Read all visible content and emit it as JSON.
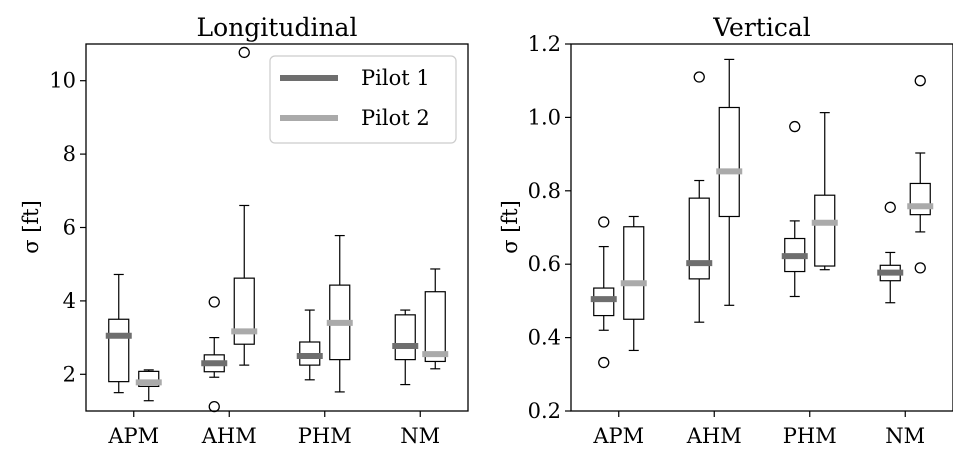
{
  "legend": {
    "items": [
      "Pilot 1",
      "Pilot 2"
    ]
  },
  "colors": {
    "pilot1": "#6e6e6e",
    "pilot2": "#aaaaaa"
  },
  "chart_data": [
    {
      "type": "box",
      "title": "Longitudinal",
      "ylabel": "σ [ft]",
      "ylim": [
        1.0,
        11.0
      ],
      "yticks": [
        2,
        4,
        6,
        8,
        10
      ],
      "ytick_labels": [
        "2",
        "4",
        "6",
        "8",
        "10"
      ],
      "categories": [
        "APM",
        "AHM",
        "PHM",
        "NM"
      ],
      "legend_position": "top-right",
      "series": [
        {
          "name": "Pilot 1",
          "boxes": [
            {
              "whislo": 1.5,
              "q1": 1.8,
              "med": 3.05,
              "q3": 3.5,
              "whishi": 4.72,
              "fliers": []
            },
            {
              "whislo": 1.92,
              "q1": 2.07,
              "med": 2.3,
              "q3": 2.53,
              "whishi": 3.0,
              "fliers": [
                1.12,
                3.97
              ]
            },
            {
              "whislo": 1.85,
              "q1": 2.25,
              "med": 2.5,
              "q3": 2.88,
              "whishi": 3.75,
              "fliers": []
            },
            {
              "whislo": 1.72,
              "q1": 2.4,
              "med": 2.77,
              "q3": 3.62,
              "whishi": 3.75,
              "fliers": []
            }
          ]
        },
        {
          "name": "Pilot 2",
          "boxes": [
            {
              "whislo": 1.28,
              "q1": 1.67,
              "med": 1.78,
              "q3": 2.08,
              "whishi": 2.12,
              "fliers": []
            },
            {
              "whislo": 2.25,
              "q1": 2.82,
              "med": 3.17,
              "q3": 4.62,
              "whishi": 6.6,
              "fliers": [
                10.77
              ]
            },
            {
              "whislo": 1.52,
              "q1": 2.4,
              "med": 3.4,
              "q3": 4.43,
              "whishi": 5.78,
              "fliers": []
            },
            {
              "whislo": 2.15,
              "q1": 2.35,
              "med": 2.55,
              "q3": 4.25,
              "whishi": 4.87,
              "fliers": []
            }
          ]
        }
      ]
    },
    {
      "type": "box",
      "title": "Vertical",
      "ylabel": "σ [ft]",
      "ylim": [
        0.2,
        1.2
      ],
      "yticks": [
        0.2,
        0.4,
        0.6,
        0.8,
        1.0,
        1.2
      ],
      "ytick_labels": [
        "0.2",
        "0.4",
        "0.6",
        "0.8",
        "1.0",
        "1.2"
      ],
      "categories": [
        "APM",
        "AHM",
        "PHM",
        "NM"
      ],
      "series": [
        {
          "name": "Pilot 1",
          "boxes": [
            {
              "whislo": 0.42,
              "q1": 0.46,
              "med": 0.505,
              "q3": 0.535,
              "whishi": 0.648,
              "fliers": [
                0.332,
                0.715
              ]
            },
            {
              "whislo": 0.442,
              "q1": 0.56,
              "med": 0.603,
              "q3": 0.78,
              "whishi": 0.828,
              "fliers": [
                1.11
              ]
            },
            {
              "whislo": 0.512,
              "q1": 0.58,
              "med": 0.622,
              "q3": 0.67,
              "whishi": 0.718,
              "fliers": [
                0.975
              ]
            },
            {
              "whislo": 0.495,
              "q1": 0.555,
              "med": 0.577,
              "q3": 0.597,
              "whishi": 0.632,
              "fliers": [
                0.755
              ]
            }
          ]
        },
        {
          "name": "Pilot 2",
          "boxes": [
            {
              "whislo": 0.365,
              "q1": 0.45,
              "med": 0.548,
              "q3": 0.702,
              "whishi": 0.73,
              "fliers": []
            },
            {
              "whislo": 0.488,
              "q1": 0.73,
              "med": 0.853,
              "q3": 1.027,
              "whishi": 1.158,
              "fliers": []
            },
            {
              "whislo": 0.585,
              "q1": 0.595,
              "med": 0.713,
              "q3": 0.788,
              "whishi": 1.013,
              "fliers": []
            },
            {
              "whislo": 0.688,
              "q1": 0.735,
              "med": 0.758,
              "q3": 0.82,
              "whishi": 0.903,
              "fliers": [
                0.59,
                1.1
              ]
            }
          ]
        }
      ]
    }
  ]
}
